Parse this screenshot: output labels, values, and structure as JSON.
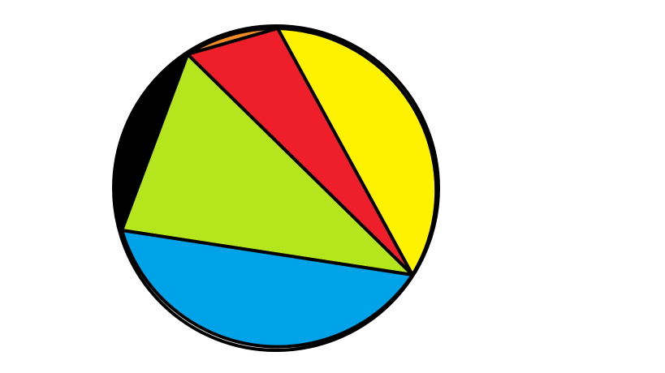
{
  "figure": {
    "regions": [
      {
        "name": "orange-region",
        "color": "#f08a24"
      },
      {
        "name": "red-region",
        "color": "#ee1f2a"
      },
      {
        "name": "yellow-region",
        "color": "#fff200"
      },
      {
        "name": "green-region",
        "color": "#b5e61d"
      },
      {
        "name": "black-region",
        "color": "#000000"
      },
      {
        "name": "blue-region",
        "color": "#00a2e8"
      }
    ],
    "outline_color": "#000000",
    "background_color": "#ffffff"
  }
}
